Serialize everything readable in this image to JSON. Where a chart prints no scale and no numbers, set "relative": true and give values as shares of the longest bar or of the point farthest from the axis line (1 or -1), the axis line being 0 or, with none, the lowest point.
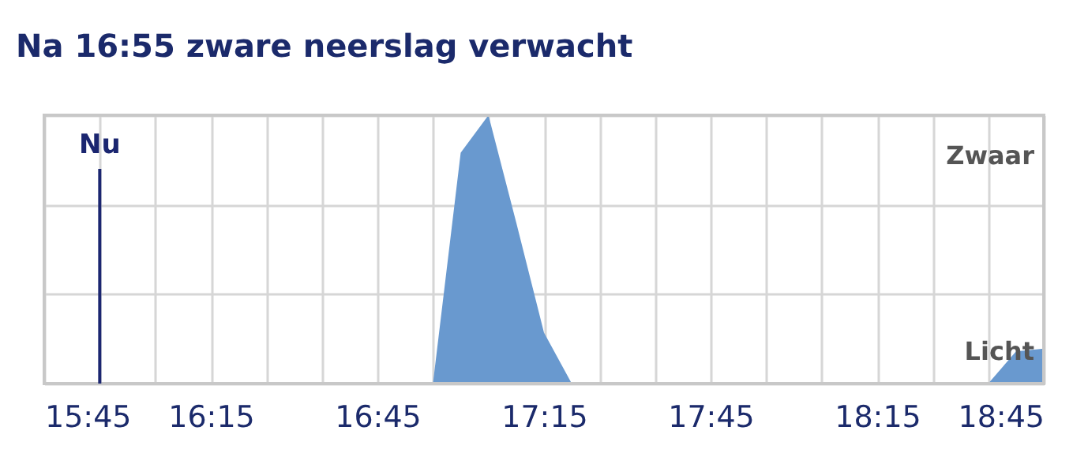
{
  "chart_data": {
    "type": "area",
    "title": "Na 16:55 zware neerslag verwacht",
    "relative": true,
    "x": [
      15.75,
      16.9167,
      17.0,
      17.0833,
      17.1667,
      17.25,
      17.3333,
      18.5833,
      18.6667,
      18.75
    ],
    "series": [
      {
        "color": "#6999cf",
        "values": [
          0,
          0,
          0.86,
          1,
          0.6,
          0.19,
          0,
          0,
          0.12,
          0.13
        ]
      }
    ],
    "xlim": [
      15.75,
      18.75
    ],
    "xticks": [
      {
        "value": 15.75,
        "label": "15:45"
      },
      {
        "value": 15.9167,
        "label": null
      },
      {
        "value": 16.0833,
        "label": null
      },
      {
        "value": 16.25,
        "label": "16:15"
      },
      {
        "value": 16.4167,
        "label": null
      },
      {
        "value": 16.5833,
        "label": null
      },
      {
        "value": 16.75,
        "label": "16:45"
      },
      {
        "value": 16.9167,
        "label": null
      },
      {
        "value": 17.0833,
        "label": null
      },
      {
        "value": 17.25,
        "label": "17:15"
      },
      {
        "value": 17.4167,
        "label": null
      },
      {
        "value": 17.5833,
        "label": null
      },
      {
        "value": 17.75,
        "label": "17:45"
      },
      {
        "value": 17.9167,
        "label": null
      },
      {
        "value": 18.0833,
        "label": null
      },
      {
        "value": 18.25,
        "label": "18:15"
      },
      {
        "value": 18.4167,
        "label": null
      },
      {
        "value": 18.5833,
        "label": null
      },
      {
        "value": 18.75,
        "label": "18:45"
      }
    ],
    "ref_lines": [
      {
        "axis": "x",
        "value": 15.9167,
        "label": "Nu",
        "color": "#1b2670"
      }
    ],
    "annotations": [
      "Zwaar",
      "Licht"
    ],
    "grid": true
  }
}
